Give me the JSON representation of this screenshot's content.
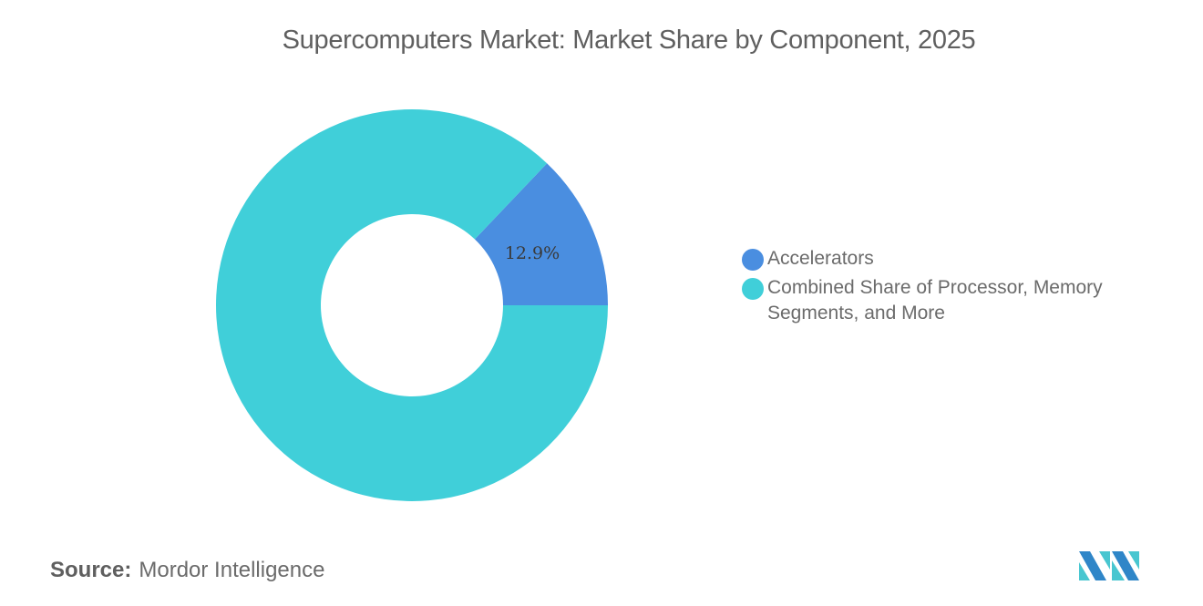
{
  "title": "Supercomputers Market: Market Share by Component, 2025",
  "chart_data": {
    "type": "pie",
    "subtype": "donut",
    "title": "Supercomputers Market: Market Share by Component, 2025",
    "categories": [
      "Accelerators",
      "Combined Share of Processor, Memory Segments, and More"
    ],
    "values": [
      12.9,
      87.1
    ],
    "data_labels": [
      "12.9%",
      ""
    ],
    "colors": [
      "#4a8ee0",
      "#40cfd9"
    ],
    "legend_position": "right"
  },
  "legend": {
    "items": [
      {
        "label": "Accelerators",
        "color": "#4a8ee0"
      },
      {
        "label": "Combined Share of Processor, Memory Segments, and More",
        "color": "#40cfd9"
      }
    ]
  },
  "slice_label": "12.9%",
  "source": {
    "label": "Source:",
    "value": "Mordor Intelligence"
  },
  "logo": {
    "icon": "mordor-intelligence-logo-icon"
  }
}
